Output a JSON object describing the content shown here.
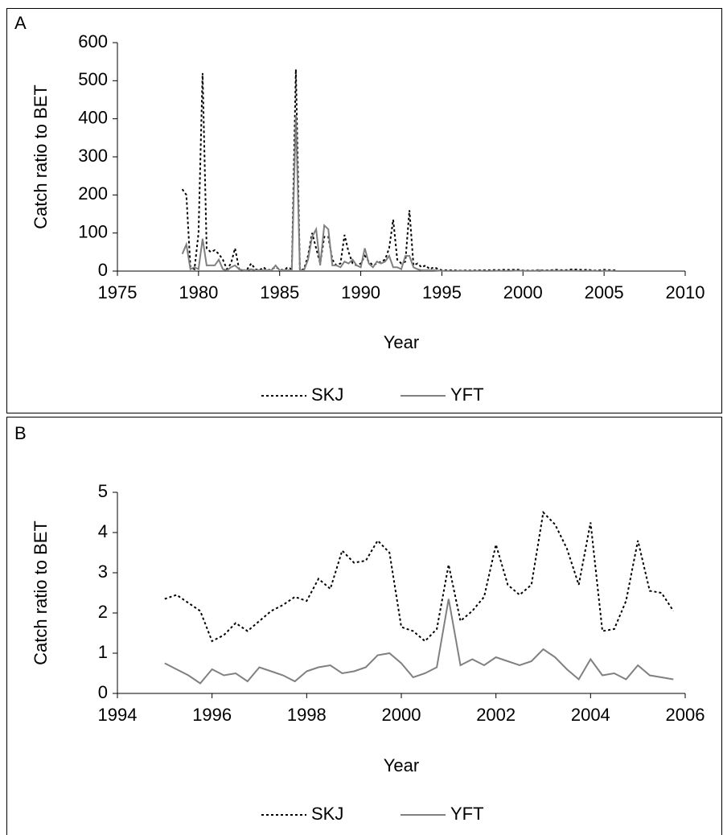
{
  "chart_data": [
    {
      "type": "line",
      "panel_label": "A",
      "x_label": "Year",
      "y_label": "Catch ratio to BET",
      "xlim": [
        1975,
        2010
      ],
      "xticks": [
        1975,
        1980,
        1985,
        1990,
        1995,
        2000,
        2005,
        2010
      ],
      "ylim": [
        0,
        600
      ],
      "yticks": [
        0,
        100,
        200,
        300,
        400,
        500,
        600
      ],
      "grid": false,
      "legend": "bottom",
      "x": [
        1979,
        1979.25,
        1979.5,
        1979.75,
        1980,
        1980.25,
        1980.5,
        1980.75,
        1981,
        1981.25,
        1981.5,
        1981.75,
        1982,
        1982.25,
        1982.5,
        1982.75,
        1983,
        1983.25,
        1983.5,
        1983.75,
        1984,
        1984.25,
        1984.5,
        1984.75,
        1985,
        1985.25,
        1985.5,
        1985.75,
        1986,
        1986.25,
        1986.5,
        1986.75,
        1987,
        1987.25,
        1987.5,
        1987.75,
        1988,
        1988.25,
        1988.5,
        1988.75,
        1989,
        1989.25,
        1989.5,
        1989.75,
        1990,
        1990.25,
        1990.5,
        1990.75,
        1991,
        1991.25,
        1991.5,
        1991.75,
        1992,
        1992.25,
        1992.5,
        1992.75,
        1993,
        1993.25,
        1993.5,
        1993.75,
        1994,
        1994.25,
        1994.5,
        1995,
        1995.25,
        1995.5,
        1995.75,
        1996,
        1996.25,
        1996.5,
        1996.75,
        1997,
        1997.25,
        1997.5,
        1997.75,
        1998,
        1998.25,
        1998.5,
        1998.75,
        1999,
        1999.25,
        1999.5,
        1999.75,
        2000,
        2000.25,
        2000.5,
        2000.75,
        2001,
        2001.25,
        2001.5,
        2001.75,
        2002,
        2002.25,
        2002.5,
        2002.75,
        2003,
        2003.25,
        2003.5,
        2003.75,
        2004,
        2004.25,
        2004.5,
        2004.75,
        2005,
        2005.25,
        2005.5,
        2005.75
      ],
      "series": [
        {
          "name": "SKJ",
          "color": "#000000",
          "dash": true,
          "values": [
            215,
            200,
            10,
            5,
            100,
            520,
            60,
            50,
            55,
            45,
            30,
            5,
            20,
            60,
            5,
            2,
            5,
            20,
            5,
            2,
            10,
            2,
            5,
            10,
            5,
            2,
            10,
            5,
            530,
            2,
            5,
            40,
            100,
            60,
            20,
            90,
            90,
            30,
            15,
            20,
            95,
            50,
            20,
            15,
            20,
            40,
            25,
            15,
            20,
            25,
            30,
            60,
            135,
            30,
            20,
            25,
            160,
            15,
            20,
            10,
            15,
            5,
            10,
            2.35,
            2.45,
            2.25,
            2.05,
            1.3,
            1.45,
            1.75,
            1.55,
            1.8,
            2.05,
            2.2,
            2.4,
            2.3,
            2.85,
            2.6,
            3.55,
            3.25,
            3.3,
            3.8,
            3.5,
            1.65,
            1.55,
            1.3,
            1.6,
            3.2,
            1.8,
            2.05,
            2.4,
            3.7,
            2.7,
            2.45,
            2.7,
            4.5,
            4.2,
            3.6,
            2.7,
            4.25,
            1.55,
            1.6,
            2.3,
            3.8,
            2.55,
            2.5,
            2.05
          ]
        },
        {
          "name": "YFT",
          "color": "#808080",
          "dash": false,
          "values": [
            45,
            70,
            5,
            10,
            5,
            85,
            15,
            15,
            15,
            30,
            5,
            2,
            10,
            15,
            5,
            2,
            2,
            5,
            2,
            2,
            2,
            2,
            2,
            15,
            2,
            2,
            2,
            2,
            410,
            2,
            2,
            30,
            90,
            110,
            15,
            120,
            110,
            15,
            15,
            10,
            25,
            20,
            30,
            15,
            10,
            60,
            20,
            10,
            25,
            20,
            25,
            40,
            10,
            10,
            5,
            40,
            40,
            10,
            5,
            2,
            2,
            2,
            2,
            0.75,
            0.6,
            0.45,
            0.25,
            0.6,
            0.45,
            0.5,
            0.3,
            0.65,
            0.55,
            0.45,
            0.3,
            0.55,
            0.65,
            0.7,
            0.5,
            0.55,
            0.65,
            0.95,
            1.0,
            0.75,
            0.4,
            0.5,
            0.65,
            2.35,
            0.7,
            0.85,
            0.7,
            0.9,
            0.8,
            0.7,
            0.8,
            1.1,
            0.9,
            0.6,
            0.35,
            0.85,
            0.45,
            0.5,
            0.35,
            0.7,
            0.45,
            0.4,
            0.35
          ]
        }
      ]
    },
    {
      "type": "line",
      "panel_label": "B",
      "x_label": "Year",
      "y_label": "Catch ratio to BET",
      "xlim": [
        1994,
        2006
      ],
      "xticks": [
        1994,
        1996,
        1998,
        2000,
        2002,
        2004,
        2006
      ],
      "ylim": [
        0,
        5
      ],
      "yticks": [
        0,
        1,
        2,
        3,
        4,
        5
      ],
      "grid": false,
      "legend": "bottom",
      "x": [
        1995,
        1995.25,
        1995.5,
        1995.75,
        1996,
        1996.25,
        1996.5,
        1996.75,
        1997,
        1997.25,
        1997.5,
        1997.75,
        1998,
        1998.25,
        1998.5,
        1998.75,
        1999,
        1999.25,
        1999.5,
        1999.75,
        2000,
        2000.25,
        2000.5,
        2000.75,
        2001,
        2001.25,
        2001.5,
        2001.75,
        2002,
        2002.25,
        2002.5,
        2002.75,
        2003,
        2003.25,
        2003.5,
        2003.75,
        2004,
        2004.25,
        2004.5,
        2004.75,
        2005,
        2005.25,
        2005.5,
        2005.75
      ],
      "series": [
        {
          "name": "SKJ",
          "color": "#000000",
          "dash": true,
          "values": [
            2.35,
            2.45,
            2.25,
            2.05,
            1.3,
            1.45,
            1.75,
            1.55,
            1.8,
            2.05,
            2.2,
            2.4,
            2.3,
            2.85,
            2.6,
            3.55,
            3.25,
            3.3,
            3.8,
            3.5,
            1.65,
            1.55,
            1.3,
            1.6,
            3.2,
            1.8,
            2.05,
            2.4,
            3.7,
            2.7,
            2.45,
            2.7,
            4.5,
            4.2,
            3.6,
            2.7,
            4.25,
            1.55,
            1.6,
            2.3,
            3.8,
            2.55,
            2.5,
            2.05
          ]
        },
        {
          "name": "YFT",
          "color": "#808080",
          "dash": false,
          "values": [
            0.75,
            0.6,
            0.45,
            0.25,
            0.6,
            0.45,
            0.5,
            0.3,
            0.65,
            0.55,
            0.45,
            0.3,
            0.55,
            0.65,
            0.7,
            0.5,
            0.55,
            0.65,
            0.95,
            1.0,
            0.75,
            0.4,
            0.5,
            0.65,
            2.35,
            0.7,
            0.85,
            0.7,
            0.9,
            0.8,
            0.7,
            0.8,
            1.1,
            0.9,
            0.6,
            0.35,
            0.85,
            0.45,
            0.5,
            0.35,
            0.7,
            0.45,
            0.4,
            0.35
          ]
        }
      ]
    }
  ]
}
